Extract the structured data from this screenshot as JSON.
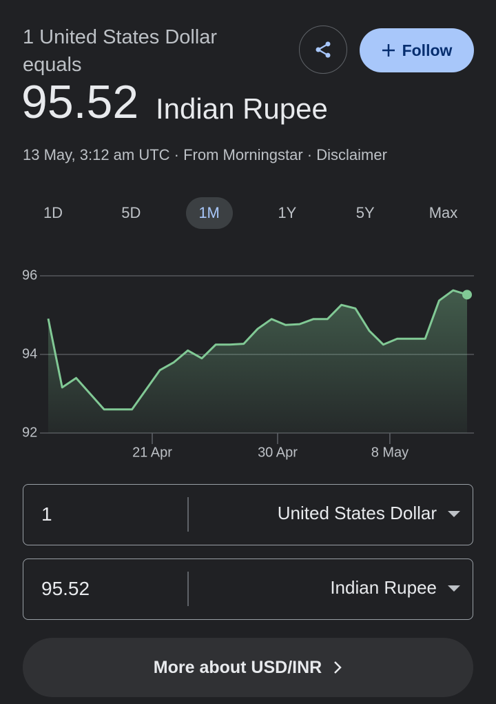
{
  "header": {
    "prefix": "1 United States Dollar equals",
    "rate": "95.52",
    "currency": "Indian Rupee",
    "meta": "13 May, 3:12 am UTC · From Morningstar · Disclaimer"
  },
  "follow": "Follow",
  "ranges": [
    "1D",
    "5D",
    "1M",
    "1Y",
    "5Y",
    "Max"
  ],
  "selected_range": "1M",
  "chart_data": {
    "type": "line",
    "color": "#81c995",
    "values": [
      94.91,
      93.16,
      93.4,
      93.0,
      92.6,
      92.6,
      92.6,
      93.1,
      93.6,
      93.8,
      94.1,
      93.9,
      94.25,
      94.25,
      94.27,
      94.65,
      94.9,
      94.75,
      94.77,
      94.9,
      94.9,
      95.26,
      95.17,
      94.6,
      94.25,
      94.4,
      94.4,
      94.4,
      95.37,
      95.63,
      95.52
    ],
    "xlim": [
      0,
      30
    ],
    "xticks": [
      {
        "value": 7.45,
        "label": "21 Apr"
      },
      {
        "value": 16.43,
        "label": "30 Apr"
      },
      {
        "value": 24.47,
        "label": "8 May"
      }
    ],
    "ylim": [
      92,
      96
    ],
    "yticks": [
      92,
      94,
      96
    ],
    "grid": true
  },
  "converter": [
    {
      "amount": "1",
      "currency": "United States Dollar"
    },
    {
      "amount": "95.52",
      "currency": "Indian Rupee"
    }
  ],
  "more": "More about USD/INR"
}
